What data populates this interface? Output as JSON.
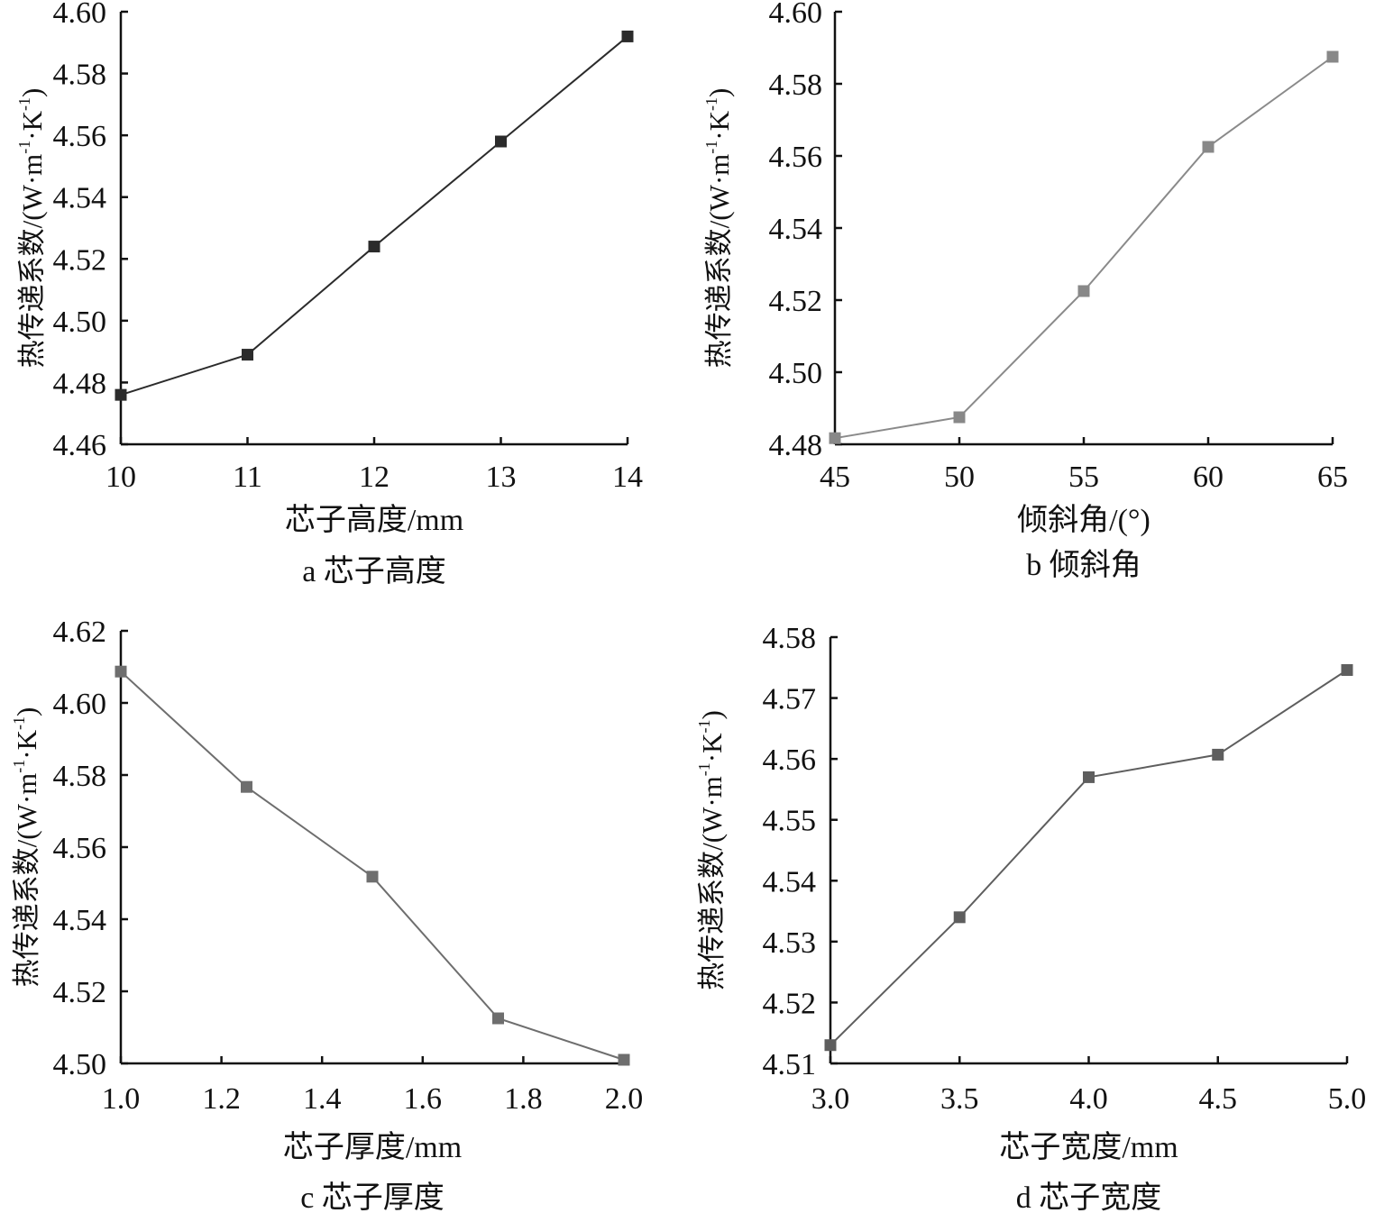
{
  "chart_data": [
    {
      "type": "line",
      "caption": "a 芯子高度",
      "xlabel": "芯子高度/mm",
      "ylabel_main": "热传递系数/(W·m",
      "ylabel_mid": "·K",
      "ylabel_sup": "-1",
      "ylabel_close": ")",
      "xticks": [
        "10",
        "11",
        "12",
        "13",
        "14"
      ],
      "yticks": [
        "4.46",
        "4.48",
        "4.50",
        "4.52",
        "4.54",
        "4.56",
        "4.58",
        "4.60"
      ],
      "xlim": [
        10,
        14
      ],
      "ylim": [
        4.46,
        4.6
      ],
      "x": [
        10,
        11,
        12,
        13,
        14
      ],
      "y": [
        4.476,
        4.489,
        4.524,
        4.558,
        4.592
      ],
      "line_color": "#2b2b2b",
      "marker_color": "#2b2b2b"
    },
    {
      "type": "line",
      "caption": "b 倾斜角",
      "xlabel": "倾斜角/(°)",
      "ylabel_main": "热传递系数/(W·m",
      "ylabel_mid": "·K",
      "ylabel_sup": "-1",
      "ylabel_close": ")",
      "xticks": [
        "45",
        "50",
        "55",
        "60",
        "65"
      ],
      "yticks": [
        "4.48",
        "4.50",
        "4.52",
        "4.54",
        "4.56",
        "4.58",
        "4.60"
      ],
      "xlim": [
        45,
        65
      ],
      "ylim": [
        4.48,
        4.6
      ],
      "x": [
        45,
        50,
        55,
        60,
        65
      ],
      "y": [
        4.4817,
        4.4875,
        4.5225,
        4.5625,
        4.5875
      ],
      "line_color": "#8a8a8a",
      "marker_color": "#888888"
    },
    {
      "type": "line",
      "caption": "c 芯子厚度",
      "xlabel": "芯子厚度/mm",
      "ylabel_main": "热传递系数/(W·m",
      "ylabel_mid": "·K",
      "ylabel_sup": "-1",
      "ylabel_close": ")",
      "xticks": [
        "1.0",
        "1.2",
        "1.4",
        "1.6",
        "1.8",
        "2.0"
      ],
      "yticks": [
        "4.50",
        "4.52",
        "4.54",
        "4.56",
        "4.58",
        "4.60",
        "4.62"
      ],
      "xlim": [
        1.0,
        2.0
      ],
      "ylim": [
        4.5,
        4.62
      ],
      "x": [
        1.0,
        1.25,
        1.5,
        1.75,
        2.0
      ],
      "y": [
        4.6087,
        4.5767,
        4.5518,
        4.5125,
        4.501
      ],
      "line_color": "#6e6e6e",
      "marker_color": "#6e6e6e"
    },
    {
      "type": "line",
      "caption": "d 芯子宽度",
      "xlabel": "芯子宽度/mm",
      "ylabel_main": "热传递系数/(W·m",
      "ylabel_mid": "·K",
      "ylabel_sup": "-1",
      "ylabel_close": ")",
      "xticks": [
        "3.0",
        "3.5",
        "4.0",
        "4.5",
        "5.0"
      ],
      "yticks": [
        "4.51",
        "4.52",
        "4.53",
        "4.54",
        "4.55",
        "4.56",
        "4.57",
        "4.58"
      ],
      "xlim": [
        3.0,
        5.0
      ],
      "ylim": [
        4.51,
        4.58
      ],
      "x": [
        3.0,
        3.5,
        4.0,
        4.5,
        5.0
      ],
      "y": [
        4.513,
        4.534,
        4.557,
        4.5607,
        4.5746
      ],
      "line_color": "#5e5e5e",
      "marker_color": "#5e5e5e"
    }
  ]
}
